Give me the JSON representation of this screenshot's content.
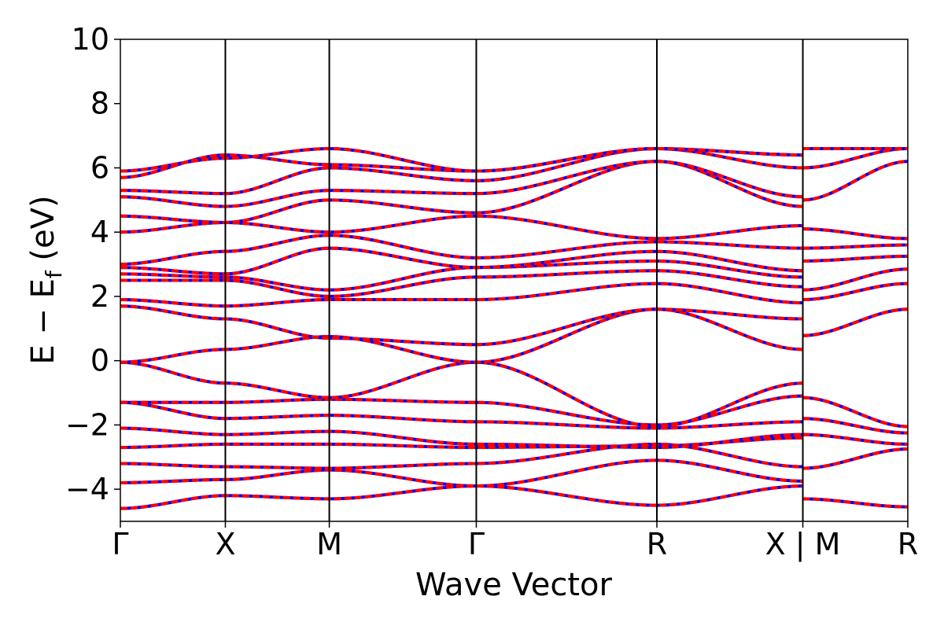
{
  "chart_data": {
    "type": "line",
    "title": "",
    "xlabel": "Wave Vector",
    "ylabel_main": "E − E",
    "ylabel_sub": "f",
    "ylabel_unit": " (eV)",
    "ylim": [
      -5,
      10
    ],
    "yticks": [
      {
        "value": 10,
        "label": "10"
      },
      {
        "value": 8,
        "label": "8"
      },
      {
        "value": 6,
        "label": "6"
      },
      {
        "value": 4,
        "label": "4"
      },
      {
        "value": 2,
        "label": "2"
      },
      {
        "value": 0,
        "label": "0"
      },
      {
        "value": -2,
        "label": "−2"
      },
      {
        "value": -4,
        "label": "−4"
      }
    ],
    "xlim": [
      0,
      7.5
    ],
    "kpoints": [
      {
        "x": 0,
        "label": "Γ"
      },
      {
        "x": 1,
        "label": "X"
      },
      {
        "x": 1.99,
        "label": "M"
      },
      {
        "x": 3.39,
        "label": "Γ"
      },
      {
        "x": 5.11,
        "label": "R"
      },
      {
        "x": 6.5,
        "label": "X | M"
      },
      {
        "x": 7.5,
        "label": "R"
      }
    ],
    "grid": false,
    "series_colors": {
      "primary": "#ff0000",
      "overlay": "#0000ff"
    },
    "segments": [
      {
        "x": [
          0,
          1,
          1.99,
          3.39,
          5.11,
          6.5
        ],
        "bands": [
          [
            -4.6,
            -4.2,
            -4.3,
            -3.9,
            -4.5,
            -3.9
          ],
          [
            -3.8,
            -3.7,
            -3.4,
            -3.9,
            -3.1,
            -3.75
          ],
          [
            -3.2,
            -3.3,
            -3.35,
            -3.2,
            -2.6,
            -3.3
          ],
          [
            -2.7,
            -2.6,
            -2.6,
            -2.7,
            -2.65,
            -2.4
          ],
          [
            -2.1,
            -2.3,
            -2.2,
            -2.6,
            -2.7,
            -2.3
          ],
          [
            -1.3,
            -1.8,
            -1.7,
            -1.9,
            -2.1,
            -1.9
          ],
          [
            -1.3,
            -1.3,
            -1.2,
            -1.3,
            -2.0,
            -1.1
          ],
          [
            -0.05,
            -0.7,
            -1.15,
            -0.05,
            -2.05,
            -0.7
          ],
          [
            -0.05,
            0.35,
            0.75,
            -0.05,
            1.6,
            0.35
          ],
          [
            1.7,
            1.3,
            0.7,
            0.5,
            1.6,
            1.3
          ],
          [
            1.9,
            1.7,
            1.9,
            1.9,
            2.4,
            1.8
          ],
          [
            2.5,
            2.5,
            2.0,
            2.6,
            2.8,
            2.3
          ],
          [
            2.7,
            2.6,
            2.2,
            2.9,
            3.1,
            2.6
          ],
          [
            2.9,
            2.7,
            3.5,
            2.9,
            3.4,
            2.8
          ],
          [
            3.0,
            3.4,
            3.9,
            3.2,
            3.7,
            3.5
          ],
          [
            4.0,
            4.3,
            4.0,
            4.5,
            3.8,
            4.2
          ],
          [
            4.5,
            4.3,
            5.0,
            4.6,
            6.2,
            4.8
          ],
          [
            5.1,
            4.8,
            5.3,
            5.2,
            6.2,
            5.1
          ],
          [
            5.3,
            5.2,
            6.0,
            5.6,
            6.6,
            6.0
          ],
          [
            5.7,
            6.4,
            6.1,
            5.9,
            6.6,
            6.4
          ],
          [
            5.9,
            6.3,
            6.6,
            5.9,
            6.6,
            6.4
          ]
        ]
      },
      {
        "x": [
          6.5,
          7.5
        ],
        "bands": [
          [
            -4.3,
            -4.55
          ],
          [
            -3.35,
            -2.75
          ],
          [
            -2.3,
            -2.6
          ],
          [
            -1.8,
            -2.25
          ],
          [
            -1.15,
            -2.05
          ],
          [
            0.78,
            1.6
          ],
          [
            1.9,
            2.4
          ],
          [
            2.2,
            2.85
          ],
          [
            3.1,
            3.25
          ],
          [
            3.5,
            3.6
          ],
          [
            4.1,
            3.8
          ],
          [
            5.0,
            6.2
          ],
          [
            6.0,
            6.6
          ],
          [
            6.6,
            6.6
          ]
        ]
      }
    ]
  }
}
